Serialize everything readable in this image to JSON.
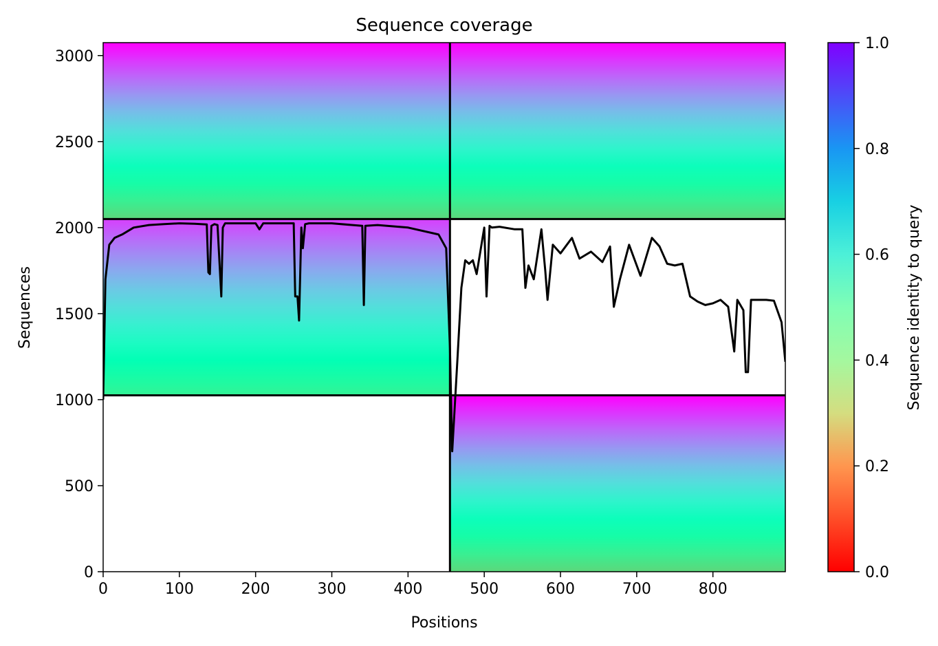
{
  "chart_data": {
    "type": "heatmap",
    "title": "Sequence coverage",
    "xlabel": "Positions",
    "ylabel": "Sequences",
    "xlim": [
      0,
      895
    ],
    "ylim": [
      0,
      3075
    ],
    "xticks": [
      0,
      100,
      200,
      300,
      400,
      500,
      600,
      700,
      800
    ],
    "yticks": [
      0,
      500,
      1000,
      1500,
      2000,
      2500,
      3000
    ],
    "grid": false,
    "colorbar": {
      "label": "Sequence identity to query",
      "range": [
        0,
        1
      ],
      "ticks": [
        0.0,
        0.2,
        0.4,
        0.6,
        0.8,
        1.0
      ],
      "tick_labels": [
        "0.0",
        "0.2",
        "0.4",
        "0.6",
        "0.8",
        "1.0"
      ],
      "colormap": "rainbow_r"
    },
    "chain_boundary_position": 455,
    "blocks": [
      {
        "name": "block-top-left",
        "x": [
          0,
          455
        ],
        "y": [
          2050,
          3075
        ],
        "identity_top": 1.0,
        "identity_bottom": 0.32
      },
      {
        "name": "block-top-right",
        "x": [
          455,
          895
        ],
        "y": [
          2050,
          3075
        ],
        "identity_top": 1.0,
        "identity_bottom": 0.32
      },
      {
        "name": "block-middle-left",
        "x": [
          0,
          455
        ],
        "y": [
          1025,
          2050
        ],
        "identity_top": 0.92,
        "identity_bottom": 0.4
      },
      {
        "name": "block-bottom-right",
        "x": [
          455,
          895
        ],
        "y": [
          0,
          1025
        ],
        "identity_top": 1.0,
        "identity_bottom": 0.32
      }
    ],
    "coverage_line": {
      "x": [
        0,
        3,
        8,
        15,
        25,
        40,
        60,
        80,
        100,
        120,
        136,
        138,
        140,
        142,
        146,
        150,
        155,
        157,
        160,
        170,
        200,
        205,
        210,
        250,
        252,
        255,
        257,
        260,
        262,
        265,
        270,
        300,
        340,
        342,
        344,
        360,
        400,
        440,
        450,
        455,
        458,
        465,
        470,
        475,
        480,
        485,
        490,
        500,
        503,
        507,
        510,
        520,
        540,
        550,
        554,
        558,
        565,
        575,
        580,
        583,
        590,
        600,
        615,
        625,
        640,
        655,
        665,
        670,
        678,
        690,
        700,
        705,
        720,
        730,
        740,
        750,
        760,
        770,
        780,
        790,
        800,
        810,
        820,
        828,
        832,
        840,
        843,
        846,
        850,
        870,
        880,
        890,
        895
      ],
      "y": [
        1000,
        1700,
        1900,
        1940,
        1960,
        2000,
        2015,
        2020,
        2025,
        2022,
        2018,
        1740,
        1730,
        2010,
        2020,
        2015,
        1600,
        2000,
        2025,
        2025,
        2025,
        1990,
        2025,
        2025,
        1600,
        1600,
        1460,
        2000,
        1880,
        2020,
        2025,
        2025,
        2010,
        1550,
        2010,
        2015,
        2000,
        1960,
        1880,
        1300,
        700,
        1250,
        1650,
        1810,
        1790,
        1810,
        1730,
        2000,
        1600,
        2010,
        2000,
        2005,
        1990,
        1990,
        1650,
        1780,
        1700,
        1990,
        1750,
        1580,
        1900,
        1850,
        1940,
        1820,
        1860,
        1800,
        1890,
        1540,
        1700,
        1900,
        1780,
        1720,
        1940,
        1890,
        1790,
        1780,
        1790,
        1600,
        1570,
        1550,
        1560,
        1580,
        1540,
        1280,
        1580,
        1520,
        1160,
        1160,
        1580,
        1580,
        1575,
        1450,
        1220
      ]
    }
  }
}
